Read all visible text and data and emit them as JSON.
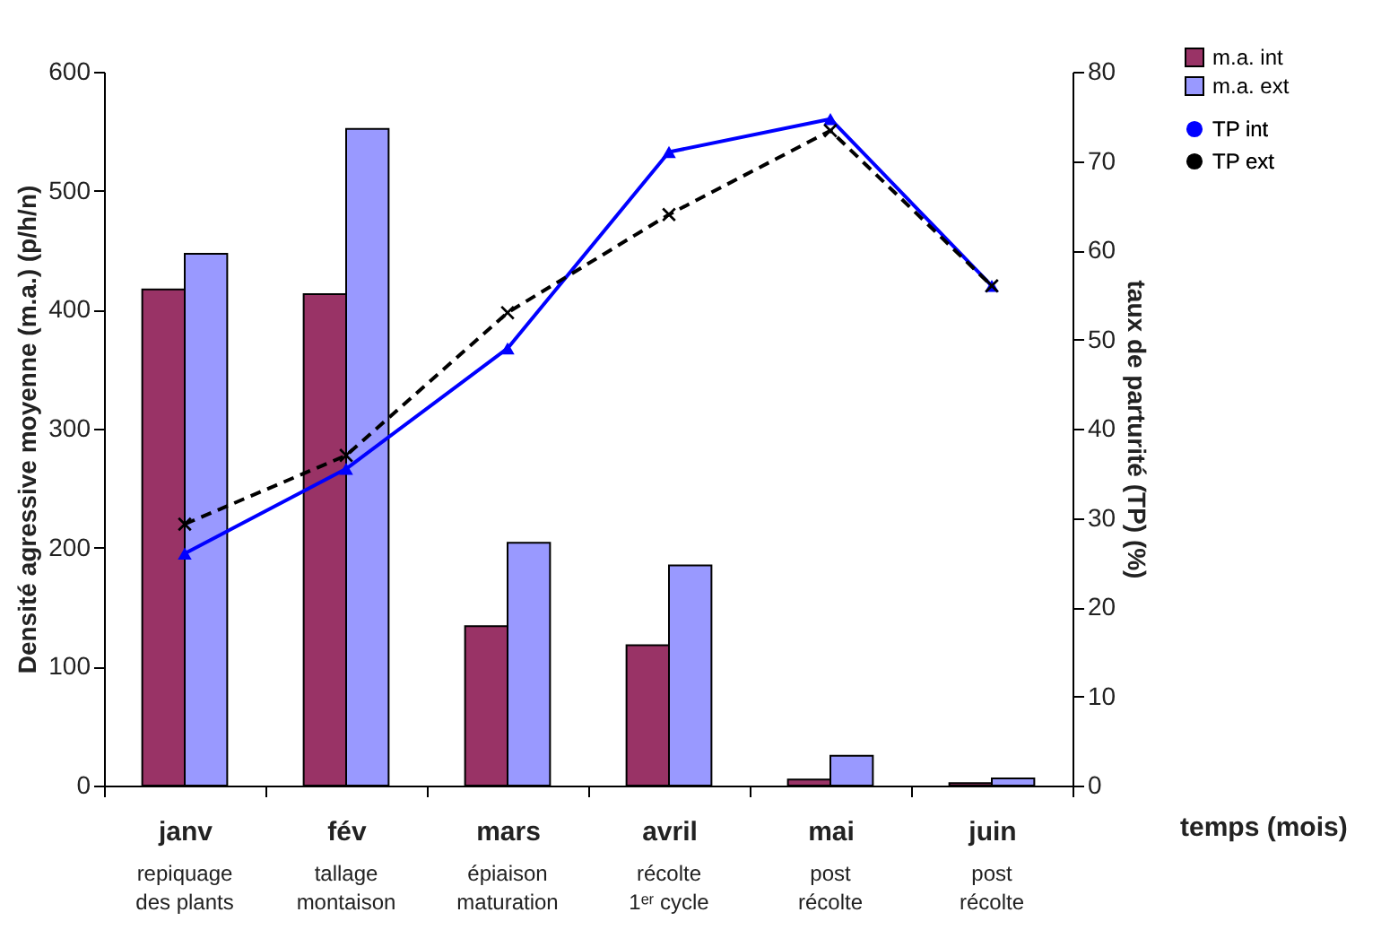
{
  "chart_data": {
    "type": "bar",
    "ylabel": "Densité agressive moyenne (m.a.) (p/h/n)",
    "y2label": "taux de parturité (TP) (%)",
    "xlabel": "temps (mois)",
    "categories": [
      "janv",
      "fév",
      "mars",
      "avril",
      "mai",
      "juin"
    ],
    "annotations": [
      "repiquage\ndes plants",
      "tallage\nmontaison",
      "épiaison\nmaturation",
      "récolte\n1ᵉʳ cycle",
      "post\nrécolte",
      "post\nrécolte"
    ],
    "series": [
      {
        "name": "m.a. int",
        "color": "#993366",
        "values": [
          417,
          413,
          134,
          118,
          5,
          2
        ]
      },
      {
        "name": "m.a. ext",
        "color": "#9999ff",
        "values": [
          447,
          552,
          204,
          185,
          25,
          6
        ]
      },
      {
        "name": "TP int",
        "type": "line",
        "axis": "y2",
        "color": "#0000ff",
        "marker": "triangle",
        "line_style": "solid",
        "values": [
          26,
          35.5,
          49,
          71,
          74.7,
          56
        ]
      },
      {
        "name": "TP ext",
        "type": "line",
        "axis": "y2",
        "color": "#000000",
        "marker": "cross",
        "line_style": "dashed",
        "values": [
          29.3,
          37,
          53,
          64,
          73.4,
          56
        ]
      }
    ],
    "ylim": [
      0,
      600
    ],
    "yticks": [
      0,
      100,
      200,
      300,
      400,
      500,
      600
    ],
    "y2lim": [
      0,
      80
    ],
    "y2ticks": [
      0,
      10,
      20,
      30,
      40,
      50,
      60,
      70,
      80
    ],
    "grid": false,
    "legend": "top right"
  }
}
